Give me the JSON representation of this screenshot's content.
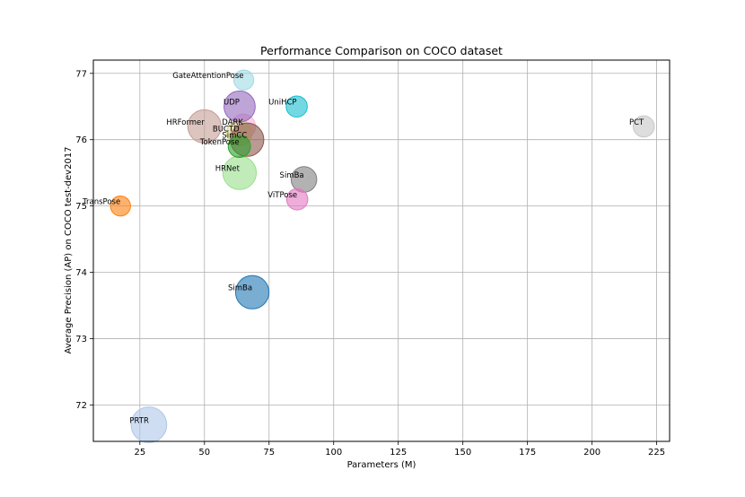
{
  "chart_data": {
    "type": "scatter",
    "title": "Performance Comparison on COCO dataset",
    "xlabel": "Parameters (M)",
    "ylabel": "Average Precision (AP) on COCO test-dev2017",
    "xlim": [
      7,
      230
    ],
    "ylim": [
      71.45,
      77.2
    ],
    "xticks": [
      25,
      50,
      75,
      100,
      125,
      150,
      175,
      200,
      225
    ],
    "yticks": [
      72,
      73,
      74,
      75,
      76,
      77
    ],
    "grid": true,
    "points": [
      {
        "label": "PRTR",
        "x": 28.5,
        "y": 71.7,
        "size": 3.2,
        "color": "#aec7e8"
      },
      {
        "label": "SimBa",
        "x": 68.5,
        "y": 73.7,
        "size": 3.0,
        "color": "#1f77b4"
      },
      {
        "label": "TransPose",
        "x": 17.5,
        "y": 75.0,
        "size": 1.8,
        "color": "#ff7f0e"
      },
      {
        "label": "HRNet",
        "x": 63.6,
        "y": 75.5,
        "size": 3.0,
        "color": "#98df8a"
      },
      {
        "label": "SimBa",
        "x": 88.5,
        "y": 75.4,
        "size": 2.3,
        "color": "#7f7f7f"
      },
      {
        "label": "ViTPose",
        "x": 85.9,
        "y": 75.1,
        "size": 1.9,
        "color": "#e377c2"
      },
      {
        "label": "HRFormer",
        "x": 50.0,
        "y": 76.2,
        "size": 3.0,
        "color": "#c49c94"
      },
      {
        "label": "DARK",
        "x": 65.0,
        "y": 76.2,
        "size": 2.2,
        "color": "#f7b6d2"
      },
      {
        "label": "BUCTD",
        "x": 63.5,
        "y": 76.1,
        "size": 2.3,
        "color": "#dbdb8d"
      },
      {
        "label": "SimCC",
        "x": 66.5,
        "y": 76.0,
        "size": 3.0,
        "color": "#8c564b"
      },
      {
        "label": "TokenPose",
        "x": 63.5,
        "y": 75.9,
        "size": 2.0,
        "color": "#2ca02c"
      },
      {
        "label": "UDP",
        "x": 63.6,
        "y": 76.5,
        "size": 2.8,
        "color": "#9467bd"
      },
      {
        "label": "GateAttentionPose",
        "x": 65.2,
        "y": 76.9,
        "size": 1.8,
        "color": "#9edae5"
      },
      {
        "label": "UniHCP",
        "x": 85.7,
        "y": 76.5,
        "size": 1.9,
        "color": "#17becf"
      },
      {
        "label": "PCT",
        "x": 220.0,
        "y": 76.2,
        "size": 1.9,
        "color": "#c7c7c7"
      }
    ]
  }
}
